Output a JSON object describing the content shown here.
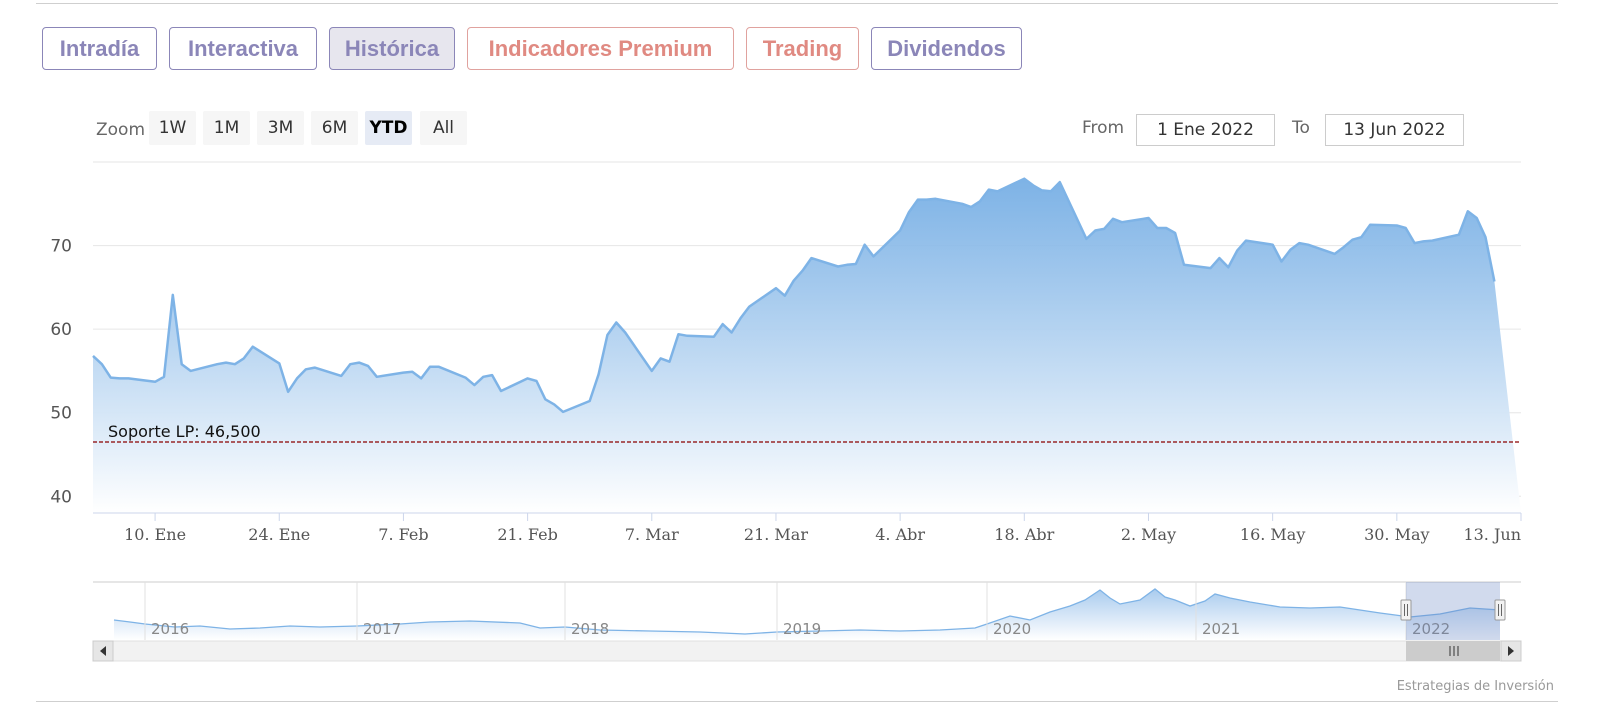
{
  "tabs": [
    {
      "label": "Intradía",
      "active": false,
      "premium": false
    },
    {
      "label": "Interactiva",
      "active": false,
      "premium": false
    },
    {
      "label": "Histórica",
      "active": true,
      "premium": false
    },
    {
      "label": "Indicadores Premium",
      "active": false,
      "premium": true
    },
    {
      "label": "Trading",
      "active": false,
      "premium": true
    },
    {
      "label": "Dividendos",
      "active": false,
      "premium": false
    }
  ],
  "zoom": {
    "label": "Zoom",
    "buttons": [
      "1W",
      "1M",
      "3M",
      "6M",
      "YTD",
      "All"
    ],
    "selected": "YTD"
  },
  "range": {
    "from_label": "From",
    "from_value": "1 Ene 2022",
    "to_label": "To",
    "to_value": "13 Jun 2022"
  },
  "credit": "Estrategias de Inversión",
  "colors": {
    "line": "#7eb3e6",
    "fill_top": "#6faae3",
    "support_line": "#8b0000",
    "tab_text": "#8b86b8",
    "tab_premium": "#e08a82"
  },
  "chart_data": {
    "type": "area",
    "x_start": "2022-01-03",
    "x_end": "2022-06-13",
    "ylim": [
      38,
      80
    ],
    "yticks": [
      40,
      50,
      60,
      70
    ],
    "xticks": [
      {
        "label": "10. Ene",
        "date": "2022-01-10"
      },
      {
        "label": "24. Ene",
        "date": "2022-01-24"
      },
      {
        "label": "7. Feb",
        "date": "2022-02-07"
      },
      {
        "label": "21. Feb",
        "date": "2022-02-21"
      },
      {
        "label": "7. Mar",
        "date": "2022-03-07"
      },
      {
        "label": "21. Mar",
        "date": "2022-03-21"
      },
      {
        "label": "4. Abr",
        "date": "2022-04-04"
      },
      {
        "label": "18. Abr",
        "date": "2022-04-18"
      },
      {
        "label": "2. May",
        "date": "2022-05-02"
      },
      {
        "label": "16. May",
        "date": "2022-05-16"
      },
      {
        "label": "30. May",
        "date": "2022-05-30"
      },
      {
        "label": "13. Jun",
        "date": "2022-06-13"
      }
    ],
    "series": [
      {
        "values": [
          56.8,
          55.8,
          54.2,
          54.1,
          54.1,
          53.7,
          54.3,
          64.1,
          55.8,
          55.0,
          55.8,
          56.0,
          55.8,
          56.5,
          57.9,
          55.9,
          52.5,
          54.1,
          55.2,
          55.4,
          54.4,
          55.8,
          56.0,
          55.6,
          54.3,
          54.8,
          54.9,
          54.1,
          55.5,
          55.5,
          54.2,
          53.3,
          54.3,
          54.5,
          52.6,
          54.1,
          53.8,
          51.6,
          51.0,
          50.1,
          51.4,
          54.6,
          59.3,
          60.8,
          59.6,
          55.0,
          56.5,
          56.1,
          59.4,
          59.2,
          59.1,
          60.6,
          59.6,
          61.3,
          62.7,
          64.9,
          64.0,
          65.8,
          67.0,
          68.5,
          67.5,
          67.7,
          67.8,
          70.1,
          68.7,
          71.8,
          74.0,
          75.5,
          75.5,
          75.6,
          75.0,
          74.6,
          75.3,
          76.7,
          76.5,
          78.0,
          77.2,
          76.6,
          76.5,
          77.6,
          70.8,
          71.8,
          72.0,
          73.2,
          72.8,
          73.3,
          72.1,
          72.1,
          71.5,
          67.7,
          67.3,
          68.5,
          67.4,
          69.4,
          70.6,
          70.1,
          68.1,
          69.5,
          70.3,
          70.1,
          69.0,
          69.8,
          70.7,
          71.0,
          72.5,
          72.4,
          72.1,
          70.3,
          70.5,
          70.6,
          71.3,
          74.1,
          73.3,
          71.0,
          65.7
        ]
      }
    ],
    "annotations": [
      {
        "label": "Soporte LP: 46,500",
        "value": 46.5
      }
    ],
    "navigator": {
      "years": [
        "2016",
        "2017",
        "2018",
        "2019",
        "2020",
        "2021",
        "2022"
      ]
    }
  }
}
